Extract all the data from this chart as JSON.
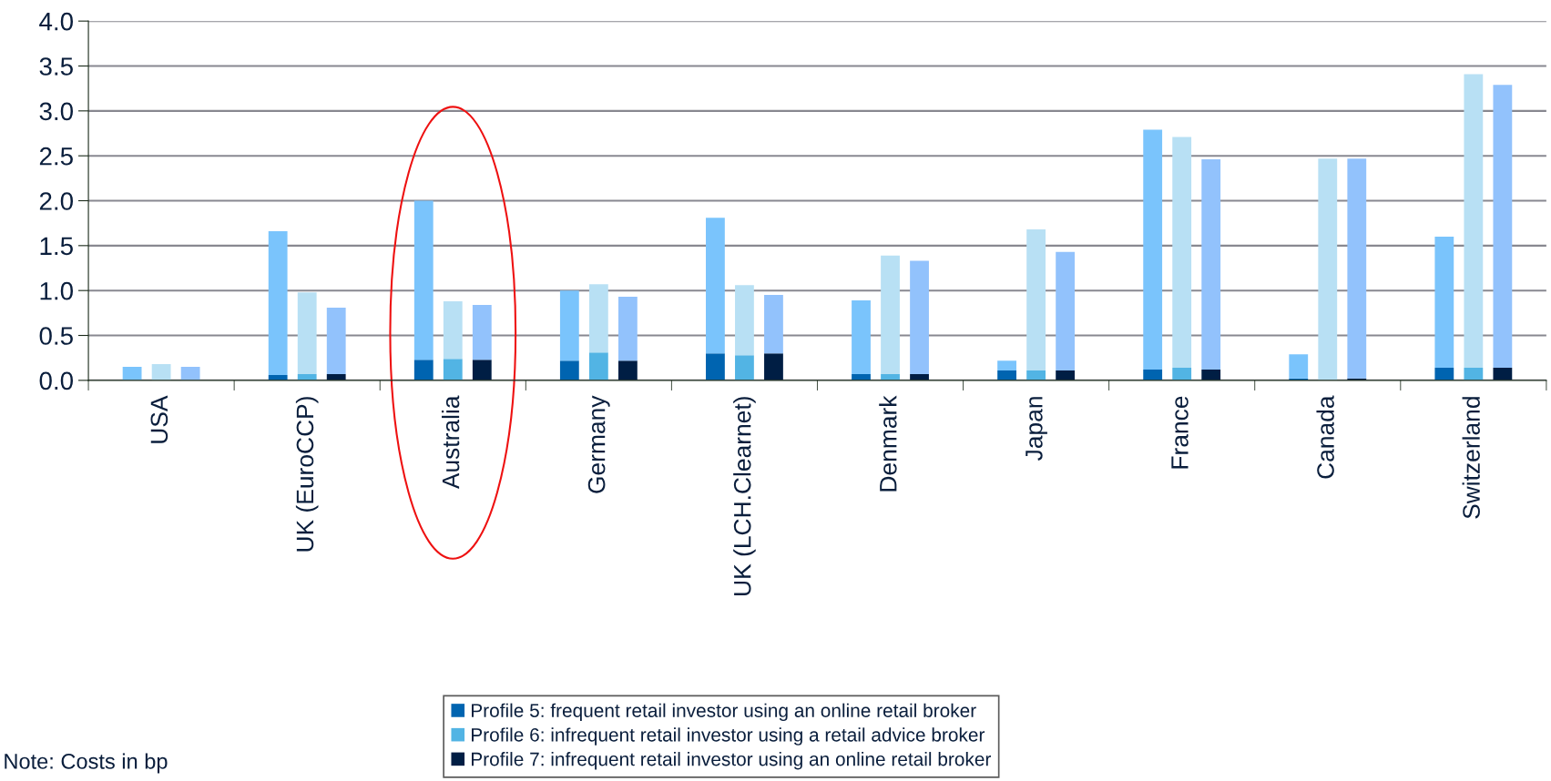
{
  "chart_data": {
    "type": "bar",
    "stacked": true,
    "categories": [
      null,
      null,
      "USA",
      null,
      null,
      null,
      null,
      "UK (EuroCCP)",
      null,
      null,
      null,
      null,
      "Australia",
      null,
      null,
      null,
      null,
      "Germany",
      null,
      null,
      null,
      null,
      "UK (LCH.Clearnet)",
      null,
      null,
      null,
      null,
      "Denmark",
      null,
      null,
      null,
      null,
      "Japan",
      null,
      null,
      null,
      null,
      "France",
      null,
      null,
      null,
      null,
      "Canada",
      null,
      null,
      null,
      null,
      "Switzerland",
      null,
      null
    ],
    "series": [
      {
        "name": "Profile 5: frequent retail investor using an online retail broker",
        "color": "#0064b0",
        "values": [
          null,
          0,
          null,
          null,
          null,
          null,
          0.06,
          null,
          null,
          null,
          null,
          0.23,
          null,
          null,
          null,
          null,
          0.22,
          null,
          null,
          null,
          null,
          0.3,
          null,
          null,
          null,
          null,
          0.07,
          null,
          null,
          null,
          null,
          0.11,
          null,
          null,
          null,
          null,
          0.12,
          null,
          null,
          null,
          null,
          0.02,
          null,
          null,
          null,
          null,
          0.14,
          null,
          null,
          null
        ]
      },
      {
        "color": "#7ac4fc",
        "values": [
          null,
          0.15,
          null,
          null,
          null,
          null,
          1.6,
          null,
          null,
          null,
          null,
          1.77,
          null,
          null,
          null,
          null,
          0.78,
          null,
          null,
          null,
          null,
          1.51,
          null,
          null,
          null,
          null,
          0.82,
          null,
          null,
          null,
          null,
          0.11,
          null,
          null,
          null,
          null,
          2.67,
          null,
          null,
          null,
          null,
          0.27,
          null,
          null,
          null,
          null,
          1.46,
          null,
          null,
          null
        ]
      },
      {
        "name": "Profile 6: infrequent retail investor using a retail advice broker",
        "color": "#52b4e4",
        "values": [
          null,
          null,
          null,
          null,
          null,
          null,
          null,
          0.07,
          null,
          null,
          null,
          null,
          0.24,
          null,
          null,
          null,
          null,
          0.31,
          null,
          null,
          null,
          null,
          0.28,
          null,
          null,
          null,
          null,
          0.07,
          null,
          null,
          null,
          null,
          0.11,
          null,
          null,
          null,
          null,
          0.14,
          null,
          null,
          null,
          null,
          0,
          null,
          null,
          null,
          null,
          0.14,
          null,
          null
        ]
      },
      {
        "color": "#b8e0f4",
        "values": [
          null,
          null,
          0.18,
          null,
          null,
          null,
          null,
          0.91,
          null,
          null,
          null,
          null,
          0.64,
          null,
          null,
          null,
          null,
          0.76,
          null,
          null,
          null,
          null,
          0.78,
          null,
          null,
          null,
          null,
          1.32,
          null,
          null,
          null,
          null,
          1.57,
          null,
          null,
          null,
          null,
          2.57,
          null,
          null,
          null,
          null,
          2.47,
          null,
          null,
          null,
          null,
          3.27,
          null,
          null
        ]
      },
      {
        "name": "Profile 7: infrequent retail investor using an online retail broker",
        "color": "#001e44",
        "values": [
          null,
          null,
          null,
          0,
          null,
          null,
          null,
          null,
          0.07,
          null,
          null,
          null,
          null,
          0.23,
          null,
          null,
          null,
          null,
          0.22,
          null,
          null,
          null,
          null,
          0.3,
          null,
          null,
          null,
          null,
          0.07,
          null,
          null,
          null,
          null,
          0.11,
          null,
          null,
          null,
          null,
          0.12,
          null,
          null,
          null,
          null,
          0.02,
          null,
          null,
          null,
          null,
          0.14,
          null
        ]
      },
      {
        "color": "#92c2fc",
        "values": [
          null,
          null,
          null,
          0.15,
          null,
          null,
          null,
          null,
          0.74,
          null,
          null,
          null,
          null,
          0.61,
          null,
          null,
          null,
          null,
          0.71,
          null,
          null,
          null,
          null,
          0.65,
          null,
          null,
          null,
          null,
          1.26,
          null,
          null,
          null,
          null,
          1.32,
          null,
          null,
          null,
          null,
          2.34,
          null,
          null,
          null,
          null,
          2.45,
          null,
          null,
          null,
          null,
          3.15,
          null
        ]
      }
    ],
    "ylim": [
      0,
      4.0
    ],
    "yticks": [
      {
        "value": 0,
        "label": "0.0"
      },
      {
        "value": 0.5,
        "label": "0.5"
      },
      {
        "value": 1.0,
        "label": "1.0"
      },
      {
        "value": 1.5,
        "label": "1.5"
      },
      {
        "value": 2.0,
        "label": "2.0"
      },
      {
        "value": 2.5,
        "label": "2.5"
      },
      {
        "value": 3.0,
        "label": "3.0"
      },
      {
        "value": 3.5,
        "label": "3.5"
      },
      {
        "value": 4.0,
        "label": "4.0"
      }
    ],
    "grid": "y",
    "legend": "bottom",
    "annotations": [
      "Note: Costs in bp"
    ]
  }
}
